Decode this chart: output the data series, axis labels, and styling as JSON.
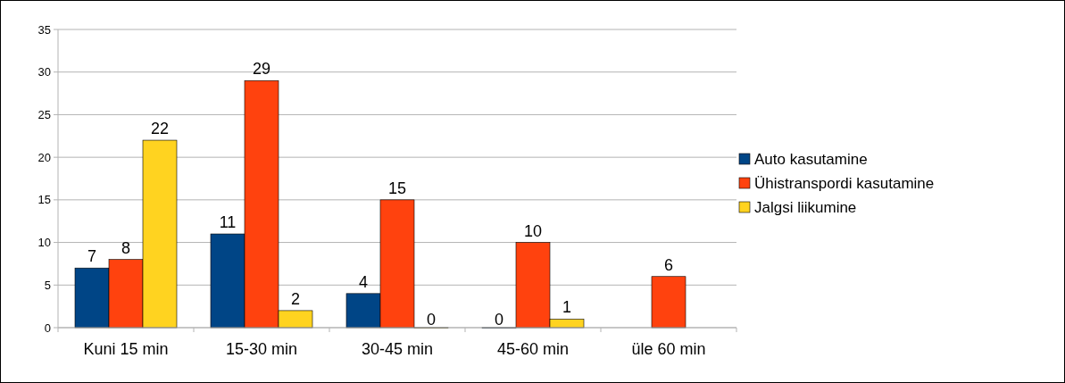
{
  "chart_data": {
    "type": "bar",
    "categories": [
      "Kuni 15 min",
      "15-30 min",
      "30-45 min",
      "45-60 min",
      "üle 60 min"
    ],
    "series": [
      {
        "name": "Auto kasutamine",
        "color": "#004586",
        "values": [
          7,
          11,
          4,
          0,
          null
        ]
      },
      {
        "name": "Ühistranspordi kasutamine",
        "color": "#ff420e",
        "values": [
          8,
          29,
          15,
          10,
          6
        ]
      },
      {
        "name": "Jalgsi liikumine",
        "color": "#ffd320",
        "values": [
          22,
          2,
          0,
          1,
          null
        ]
      }
    ],
    "ylim": [
      0,
      35
    ],
    "yticks": [
      0,
      5,
      10,
      15,
      20,
      25,
      30,
      35
    ],
    "grid": "y",
    "legend": "right",
    "data_labels": true
  }
}
